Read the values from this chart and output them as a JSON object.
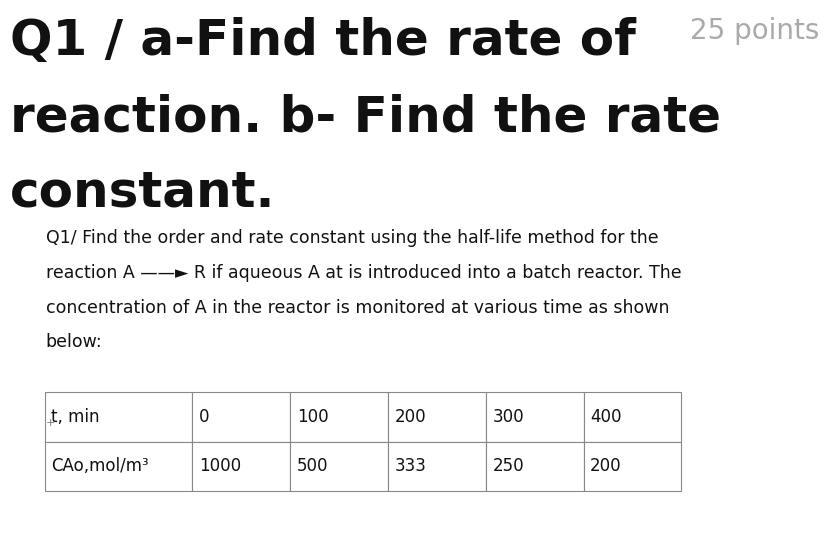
{
  "background_color": "#ffffff",
  "title_line1": "Q1 / a-Find the rate of",
  "title_line2": "reaction. b- Find the rate",
  "title_line3": "constant.",
  "points_text": "25 points",
  "title_fontsize": 36,
  "points_fontsize": 20,
  "body_text_line1": "Q1/ Find the order and rate constant using the half-life method for the",
  "body_text_line2": "reaction A ——► R if aqueous A at is introduced into a batch reactor. The",
  "body_text_line3": "concentration of A in the reactor is monitored at various time as shown",
  "body_text_line4": "below:",
  "body_fontsize": 12.5,
  "table_headers": [
    "t, min",
    "0",
    "100",
    "200",
    "300",
    "400"
  ],
  "table_row_label": "CAo,mol/m³",
  "table_row_values": [
    "1000",
    "500",
    "333",
    "250",
    "200"
  ],
  "title_color": "#111111",
  "points_color": "#aaaaaa",
  "body_color": "#111111",
  "table_border_color": "#888888",
  "table_fontsize": 12
}
